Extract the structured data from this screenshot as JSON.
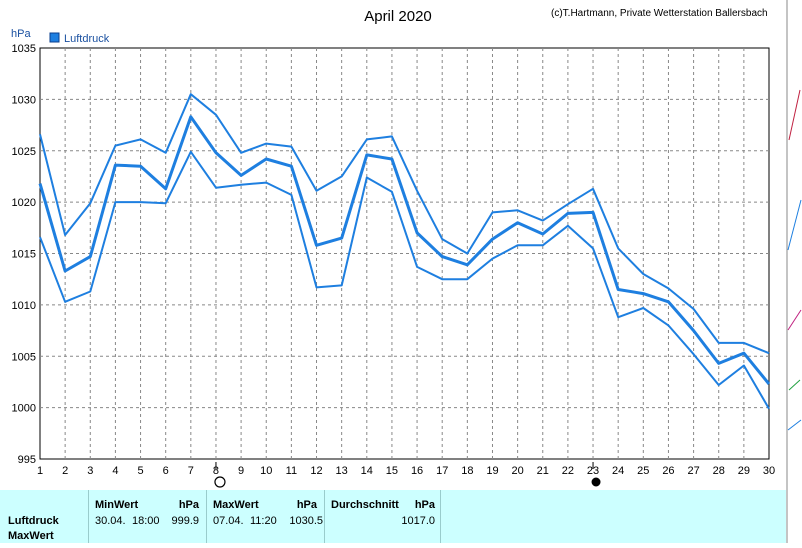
{
  "chart_data": {
    "type": "line",
    "title": "April 2020",
    "credit": "(c)T.Hartmann, Private Wetterstation Ballersbach",
    "ylabel": "hPa",
    "ylim": [
      995,
      1035
    ],
    "yticks": [
      995,
      1000,
      1005,
      1010,
      1015,
      1020,
      1025,
      1030,
      1035
    ],
    "x": [
      1,
      2,
      3,
      4,
      5,
      6,
      7,
      8,
      9,
      10,
      11,
      12,
      13,
      14,
      15,
      16,
      17,
      18,
      19,
      20,
      21,
      22,
      23,
      24,
      25,
      26,
      27,
      28,
      29,
      30
    ],
    "xlim": [
      1,
      30
    ],
    "legend": "Luftdruck",
    "legend_position": "top-left",
    "grid": true,
    "color": "#1e7fe0",
    "series": [
      {
        "name": "Luftdruck",
        "role": "mean",
        "values": [
          1021.8,
          1013.3,
          1014.7,
          1023.6,
          1023.5,
          1021.3,
          1028.3,
          1024.8,
          1022.6,
          1024.2,
          1023.5,
          1015.8,
          1016.5,
          1024.6,
          1024.2,
          1017.0,
          1014.7,
          1013.9,
          1016.4,
          1018.0,
          1016.9,
          1018.9,
          1019.0,
          1011.5,
          1011.1,
          1010.3,
          1007.5,
          1004.3,
          1005.3,
          1002.3
        ]
      },
      {
        "role": "max",
        "values": [
          1026.6,
          1016.8,
          1019.9,
          1025.5,
          1026.1,
          1024.8,
          1030.5,
          1028.5,
          1024.8,
          1025.7,
          1025.4,
          1021.1,
          1022.5,
          1026.1,
          1026.4,
          1021.1,
          1016.4,
          1015.0,
          1019.0,
          1019.2,
          1018.2,
          1019.8,
          1021.3,
          1015.5,
          1013.0,
          1011.6,
          1009.6,
          1006.3,
          1006.3,
          1005.3
        ]
      },
      {
        "role": "min",
        "values": [
          1016.6,
          1010.3,
          1011.3,
          1020.0,
          1020.0,
          1019.9,
          1024.9,
          1021.4,
          1021.7,
          1021.9,
          1020.7,
          1011.7,
          1011.9,
          1022.4,
          1021.0,
          1013.7,
          1012.5,
          1012.5,
          1014.5,
          1015.8,
          1015.8,
          1017.7,
          1015.5,
          1008.8,
          1009.7,
          1008.0,
          1005.2,
          1002.2,
          1004.1,
          999.9
        ]
      }
    ],
    "moon_phases": [
      {
        "day": 8,
        "phase": "full-moon-icon"
      },
      {
        "day": 23,
        "phase": "new-moon-icon"
      }
    ]
  },
  "footer": {
    "row_label_1": "Luftdruck",
    "row_label_2": "MaxWert",
    "min_header": "MinWert",
    "min_unit": "hPa",
    "min_date": "30.04.",
    "min_time": "18:00",
    "min_value": "999.9",
    "max_header": "MaxWert",
    "max_unit": "hPa",
    "max_date": "07.04.",
    "max_time": "11:20",
    "max_value": "1030.5",
    "avg_header": "Durchschnitt",
    "avg_unit": "hPa",
    "avg_value": "1017.0"
  }
}
